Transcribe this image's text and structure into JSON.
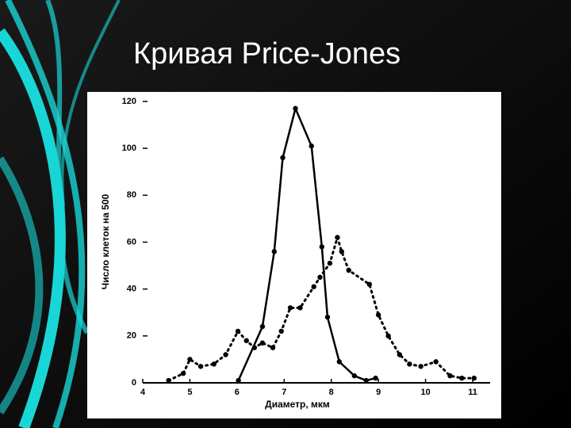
{
  "chart_data": {
    "type": "line",
    "title": "Кривая Price-Jones",
    "xlabel": "Диаметр, мкм",
    "ylabel": "Число клеток на 500",
    "xlim": [
      4,
      11.37
    ],
    "xticks": [
      4,
      5,
      6,
      7,
      8,
      9,
      10,
      11
    ],
    "ylim": [
      0,
      120
    ],
    "yticks": [
      0,
      20,
      40,
      60,
      80,
      100,
      120
    ],
    "series": [
      {
        "color": "#000000",
        "dashed": false,
        "x": [
          6.03,
          6.54,
          6.79,
          6.97,
          7.24,
          7.58,
          7.8,
          7.92,
          8.17,
          8.49,
          8.74,
          8.94
        ],
        "values": [
          1,
          24,
          56,
          96,
          117,
          101,
          58,
          28,
          9,
          3,
          1,
          2
        ]
      },
      {
        "color": "#000000",
        "dashed": true,
        "x": [
          4.55,
          4.86,
          5.0,
          5.23,
          5.51,
          5.76,
          6.02,
          6.2,
          6.37,
          6.54,
          6.76,
          6.94,
          7.13,
          7.34,
          7.63,
          7.76,
          7.97,
          8.13,
          8.22,
          8.37,
          8.81,
          9.0,
          9.21,
          9.45,
          9.66,
          9.9,
          10.22,
          10.52,
          10.77,
          11.03
        ],
        "values": [
          1,
          4,
          10,
          7,
          8,
          12,
          22,
          18,
          15,
          17,
          15,
          22,
          32,
          32,
          41,
          45,
          51,
          62,
          56,
          48,
          42,
          29,
          20,
          12,
          8,
          7,
          9,
          3,
          2,
          2
        ]
      }
    ]
  }
}
